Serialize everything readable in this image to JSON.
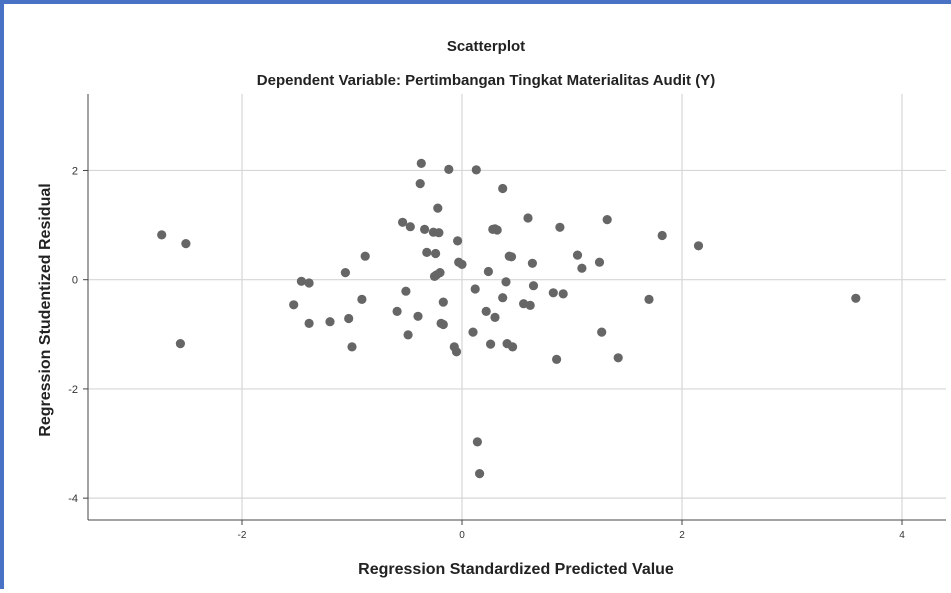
{
  "chart_data": {
    "type": "scatter",
    "title": "Scatterplot",
    "subtitle": "Dependent Variable: Pertimbangan Tingkat Materialitas Audit (Y)",
    "xlabel": "Regression Standardized Predicted Value",
    "ylabel": "Regression Studentized Residual",
    "xlim": [
      -3.4,
      4.4
    ],
    "ylim": [
      -4.4,
      3.4
    ],
    "x_ticks": [
      -2,
      0,
      2,
      4
    ],
    "y_ticks": [
      -4,
      -2,
      0,
      2
    ],
    "grid": true,
    "colors": {
      "point": "#666666",
      "grid": "#d6d6d6",
      "frame": "#4a72c4"
    },
    "points": [
      [
        -2.73,
        0.82
      ],
      [
        -2.51,
        0.66
      ],
      [
        -2.56,
        -1.17
      ],
      [
        -1.46,
        -0.03
      ],
      [
        -1.39,
        -0.06
      ],
      [
        -1.53,
        -0.46
      ],
      [
        -1.39,
        -0.8
      ],
      [
        -1.2,
        -0.77
      ],
      [
        -1.06,
        0.13
      ],
      [
        -1.03,
        -0.71
      ],
      [
        -1.0,
        -1.23
      ],
      [
        -0.91,
        -0.36
      ],
      [
        -0.88,
        0.43
      ],
      [
        -0.59,
        -0.58
      ],
      [
        -0.54,
        1.05
      ],
      [
        -0.51,
        -0.21
      ],
      [
        -0.49,
        -1.01
      ],
      [
        -0.47,
        0.97
      ],
      [
        -0.4,
        -0.67
      ],
      [
        -0.37,
        2.13
      ],
      [
        -0.38,
        1.76
      ],
      [
        -0.34,
        0.92
      ],
      [
        -0.32,
        0.5
      ],
      [
        -0.26,
        0.87
      ],
      [
        -0.24,
        0.48
      ],
      [
        -0.22,
        1.31
      ],
      [
        -0.21,
        0.86
      ],
      [
        -0.25,
        0.06
      ],
      [
        -0.23,
        0.09
      ],
      [
        -0.2,
        0.13
      ],
      [
        -0.17,
        -0.41
      ],
      [
        -0.19,
        -0.8
      ],
      [
        -0.17,
        -0.82
      ],
      [
        -0.12,
        2.02
      ],
      [
        -0.07,
        -1.23
      ],
      [
        -0.05,
        -1.32
      ],
      [
        -0.04,
        0.71
      ],
      [
        -0.03,
        0.32
      ],
      [
        0.0,
        0.28
      ],
      [
        0.1,
        -0.96
      ],
      [
        0.12,
        -0.17
      ],
      [
        0.13,
        2.01
      ],
      [
        0.14,
        -2.97
      ],
      [
        0.16,
        -3.55
      ],
      [
        0.22,
        -0.58
      ],
      [
        0.24,
        0.15
      ],
      [
        0.26,
        -1.18
      ],
      [
        0.28,
        0.92
      ],
      [
        0.3,
        0.93
      ],
      [
        0.32,
        0.91
      ],
      [
        0.3,
        -0.69
      ],
      [
        0.37,
        1.67
      ],
      [
        0.37,
        -0.33
      ],
      [
        0.4,
        -0.04
      ],
      [
        0.41,
        -1.17
      ],
      [
        0.43,
        0.43
      ],
      [
        0.45,
        0.42
      ],
      [
        0.46,
        -1.23
      ],
      [
        0.56,
        -0.44
      ],
      [
        0.6,
        1.13
      ],
      [
        0.62,
        -0.47
      ],
      [
        0.64,
        0.3
      ],
      [
        0.65,
        -0.11
      ],
      [
        0.83,
        -0.24
      ],
      [
        0.86,
        -1.46
      ],
      [
        0.89,
        0.96
      ],
      [
        0.92,
        -0.26
      ],
      [
        1.05,
        0.45
      ],
      [
        1.09,
        0.21
      ],
      [
        1.25,
        0.32
      ],
      [
        1.27,
        -0.96
      ],
      [
        1.32,
        1.1
      ],
      [
        1.42,
        -1.43
      ],
      [
        1.7,
        -0.36
      ],
      [
        1.82,
        0.81
      ],
      [
        2.15,
        0.62
      ],
      [
        3.58,
        -0.34
      ]
    ]
  }
}
